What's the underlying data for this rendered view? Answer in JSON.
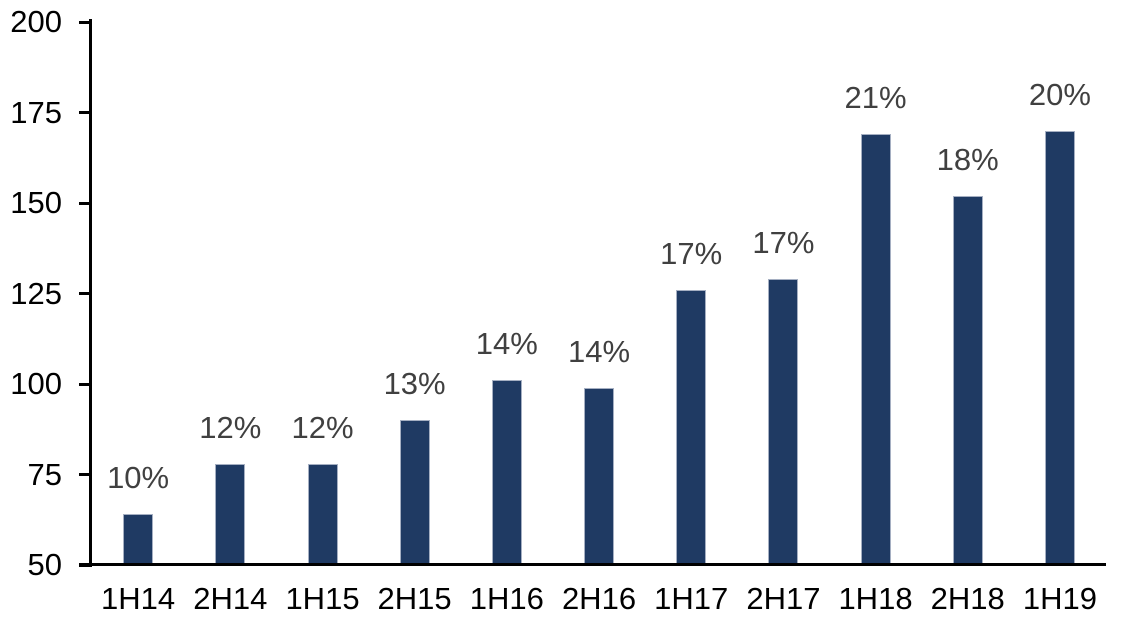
{
  "chart_data": {
    "type": "bar",
    "categories": [
      "1H14",
      "2H14",
      "1H15",
      "2H15",
      "1H16",
      "2H16",
      "1H17",
      "2H17",
      "1H18",
      "2H18",
      "1H19"
    ],
    "values": [
      64,
      78,
      78,
      90,
      101,
      99,
      126,
      129,
      169,
      152,
      170
    ],
    "data_labels": [
      "10%",
      "12%",
      "12%",
      "13%",
      "14%",
      "14%",
      "17%",
      "17%",
      "21%",
      "18%",
      "20%"
    ],
    "ylim": [
      50,
      200
    ],
    "y_ticks": [
      50,
      75,
      100,
      125,
      150,
      175,
      200
    ],
    "grid": false,
    "legend": false,
    "colors": {
      "bar_fill": "#1F3A63",
      "bar_border": "#A5AFC2",
      "data_label": "#404040",
      "axis_line": "#000000",
      "tick_label": "#000000",
      "x_label": "#000000",
      "background": "#FFFFFF"
    }
  }
}
